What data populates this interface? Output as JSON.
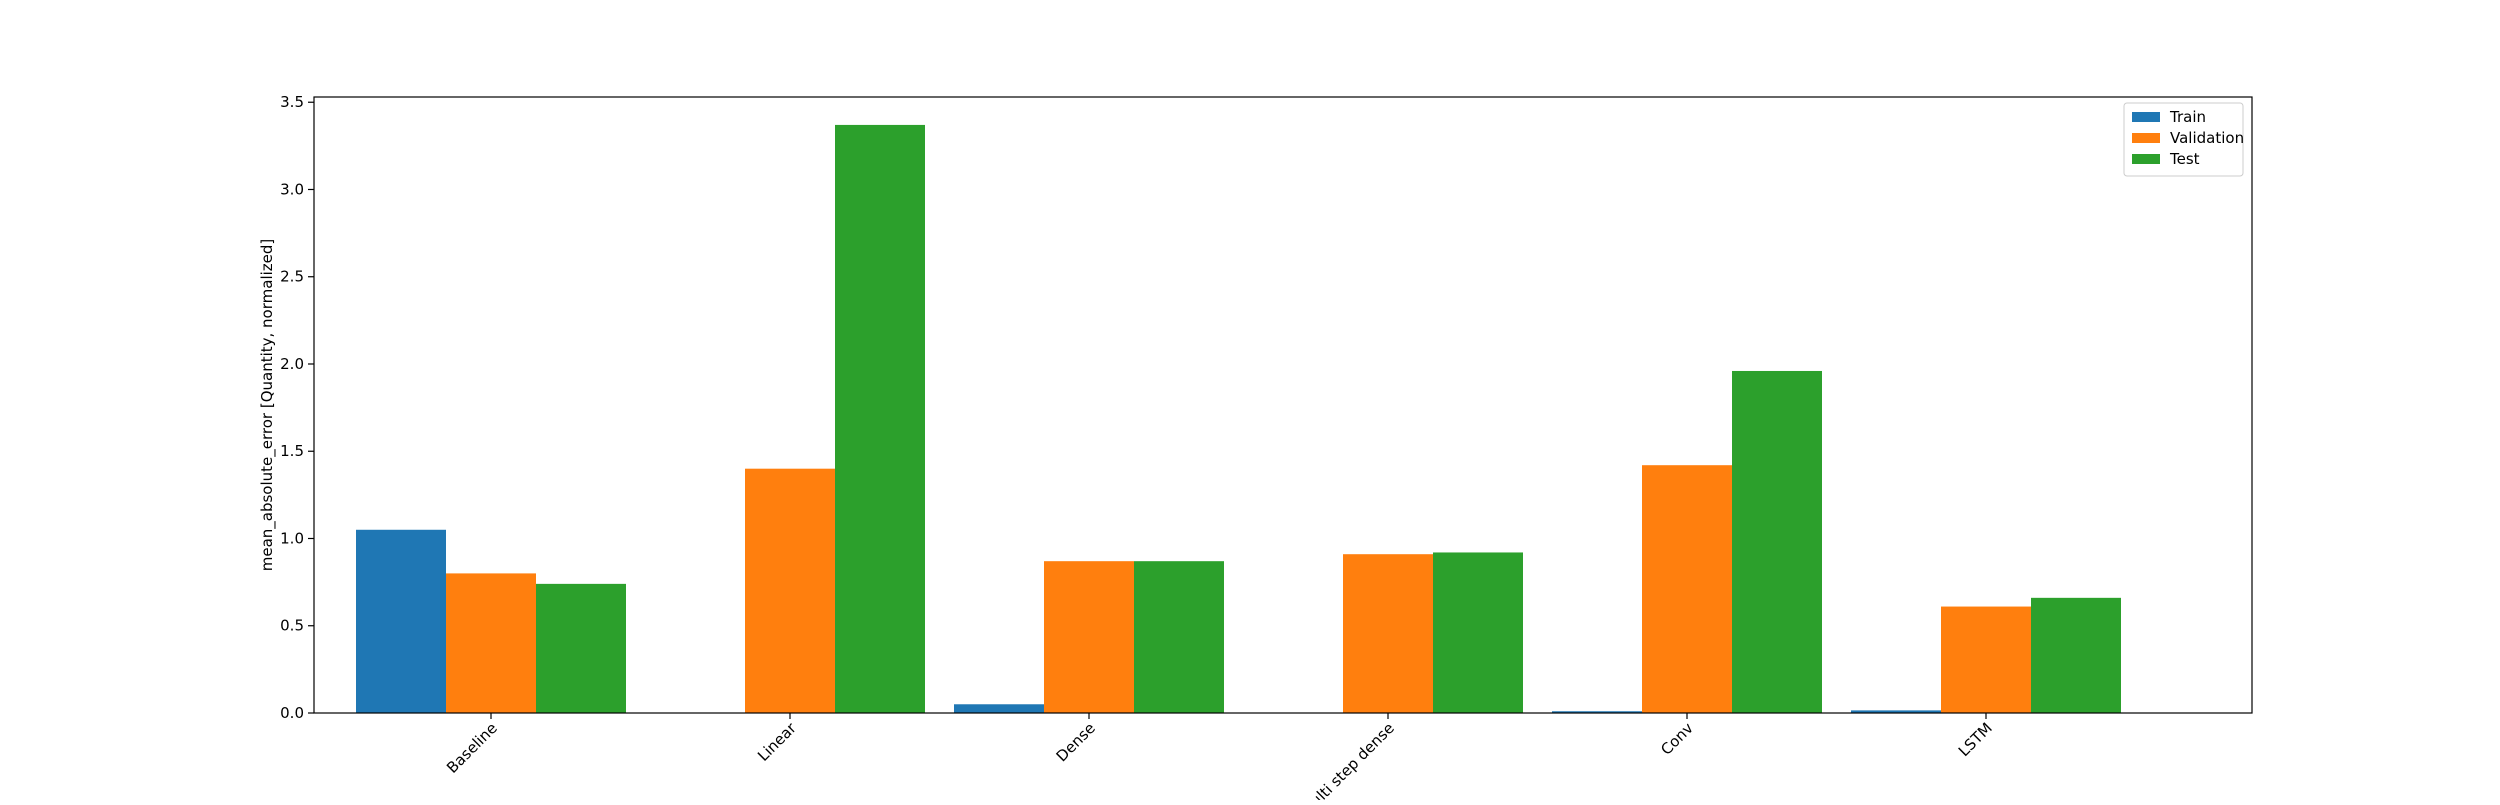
{
  "chart_data": {
    "type": "bar",
    "title": "",
    "xlabel": "",
    "ylabel": "mean_absolute_error [Quantity, normalized]",
    "categories": [
      "Baseline",
      "Linear",
      "Dense",
      "Multi step dense",
      "Conv",
      "LSTM"
    ],
    "series": [
      {
        "name": "Train",
        "color": "#1f77b4",
        "values": [
          1.05,
          0.0,
          0.05,
          0.0,
          0.01,
          0.015
        ]
      },
      {
        "name": "Validation",
        "color": "#ff7f0e",
        "values": [
          0.8,
          1.4,
          0.87,
          0.91,
          1.42,
          0.61
        ]
      },
      {
        "name": "Test",
        "color": "#2ca02c",
        "values": [
          0.74,
          3.37,
          0.87,
          0.92,
          1.96,
          0.66
        ]
      }
    ],
    "ylim": [
      0,
      3.53
    ],
    "yticks": [
      "0.0",
      "0.5",
      "1.0",
      "1.5",
      "2.0",
      "2.5",
      "3.0",
      "3.5"
    ],
    "grid": false,
    "legend_position": "top-right"
  }
}
